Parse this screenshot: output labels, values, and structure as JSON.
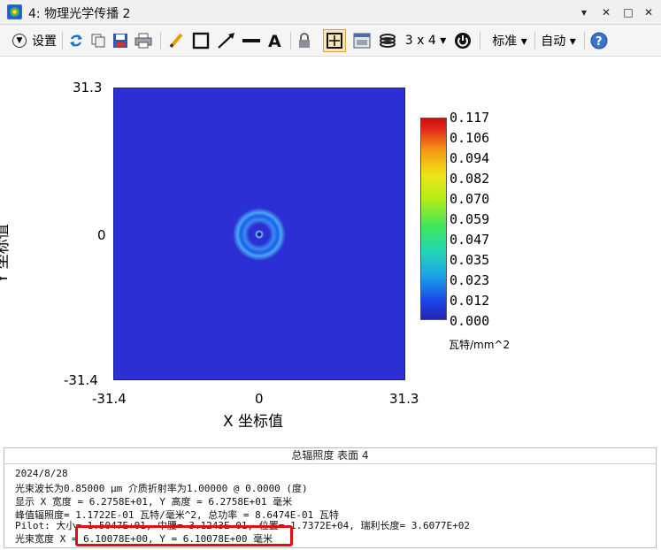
{
  "window": {
    "title": "4: 物理光学传播 2",
    "controls": {
      "menu": "▾",
      "close_x": "✕",
      "minimize": "—",
      "maximize": "□"
    }
  },
  "toolbar": {
    "settings_label": "设置",
    "layout_label": "3 x 4 ▾",
    "standard_label": "标准 ▾",
    "auto_label": "自动 ▾",
    "icons": [
      "refresh-icon",
      "copy-icon",
      "save-icon",
      "print-icon",
      "pencil-icon",
      "rectangle-icon",
      "arrow-icon",
      "line-icon",
      "text-icon",
      "lock-icon",
      "zoom-fit-icon",
      "window-icon",
      "layers-icon",
      "power-icon",
      "help-icon"
    ]
  },
  "plot": {
    "y_ticks": {
      "top": "31.3",
      "mid": "0",
      "bottom": "-31.4"
    },
    "x_ticks": {
      "left": "-31.4",
      "mid": "0",
      "right": "31.3"
    },
    "xlabel": "X  坐标值",
    "ylabel": "Y  坐标值",
    "background_color": "#2b2fd4"
  },
  "colorbar": {
    "labels": [
      "0.117",
      "0.106",
      "0.094",
      "0.082",
      "0.070",
      "0.059",
      "0.047",
      "0.035",
      "0.023",
      "0.012",
      "0.000"
    ],
    "unit": "瓦特/mm^2"
  },
  "info": {
    "header": "总辐照度  表面 4",
    "lines": [
      "2024/8/28",
      "光束波长为0.85000 μm  介质折射率为1.00000 @ 0.0000 (度)",
      "显示 X 宽度 = 6.2758E+01, Y 高度 = 6.2758E+01 毫米",
      "峰值辐照度= 1.1722E-01 瓦特/毫米^2, 总功率 = 8.6474E-01 瓦特",
      "Pilot: 大小= 1.5047E+01, 中腰= 3.1243E-01, 位置= 1.7372E+04, 瑞利长度= 3.6077E+02",
      "光束宽度 X = 6.10078E+00, Y = 6.10078E+00 毫米"
    ]
  }
}
